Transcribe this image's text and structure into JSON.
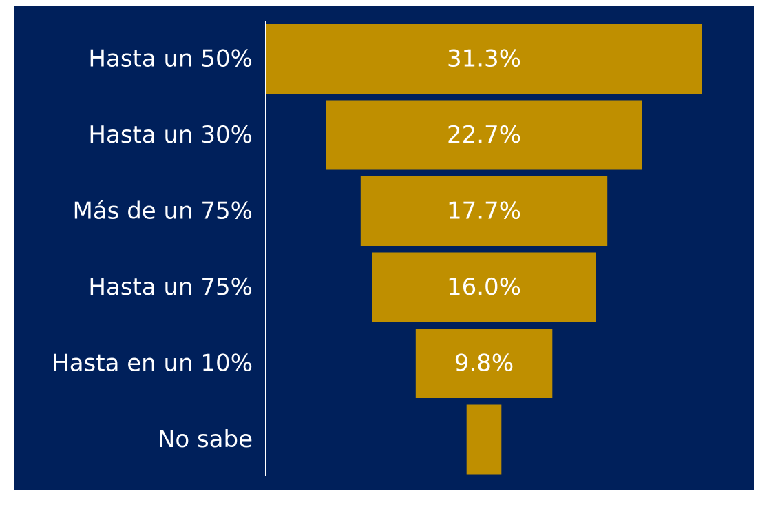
{
  "chart_data": {
    "type": "bar",
    "orientation": "horizontal-funnel",
    "categories": [
      "Hasta un 50%",
      "Hasta un 30%",
      "Más de un 75%",
      "Hasta un 75%",
      "Hasta en un 10%",
      "No sabe"
    ],
    "values": [
      31.3,
      22.7,
      17.7,
      16.0,
      9.8,
      2.5
    ],
    "value_labels": [
      "31.3%",
      "22.7%",
      "17.7%",
      "16.0%",
      "9.8%",
      ""
    ],
    "value_unit": "%",
    "title": "",
    "xlabel": "",
    "ylabel": "",
    "grid": false,
    "legend": "none"
  },
  "colors": {
    "panel_background": "#00205b",
    "bar": "#bf8f00",
    "text": "#ffffff",
    "axis_line": "#ffffff"
  }
}
